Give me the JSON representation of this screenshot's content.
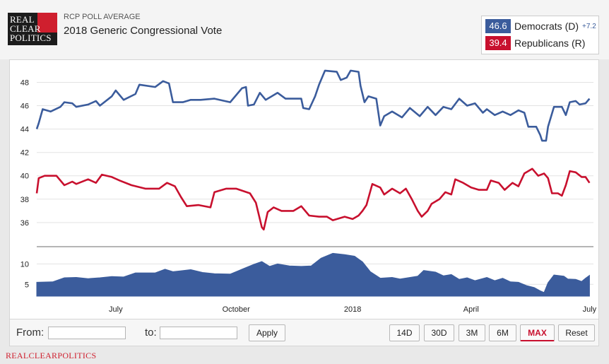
{
  "brand": {
    "logo_lines": [
      "REAL",
      "CLEAR",
      "POLITICS"
    ],
    "footer": "REALCLEARPOLITICS",
    "red": "#cf1f2e"
  },
  "header": {
    "label": "RCP POLL AVERAGE",
    "title": "2018 Generic Congressional Vote"
  },
  "legend": {
    "democrats": {
      "value": "46.6",
      "name": "Democrats (D)",
      "spread": "+7.2",
      "color": "#3b5c9c"
    },
    "republicans": {
      "value": "39.4",
      "name": "Republicans (R)",
      "color": "#c8102e"
    }
  },
  "controls": {
    "from_label": "From:",
    "to_label": "to:",
    "from_value": "",
    "to_value": "",
    "apply": "Apply",
    "ranges": [
      "14D",
      "30D",
      "3M",
      "6M",
      "MAX"
    ],
    "active_range": "MAX",
    "reset": "Reset"
  },
  "chart_data": {
    "type": "line",
    "title": "2018 Generic Congressional Vote",
    "x_unit": "month index (0 = May 2017)",
    "x_ticks": [
      {
        "x": 2.1,
        "label": "July"
      },
      {
        "x": 5.15,
        "label": "October"
      },
      {
        "x": 8.1,
        "label": "2018"
      },
      {
        "x": 11.1,
        "label": "April"
      },
      {
        "x": 14.1,
        "label": "July"
      }
    ],
    "xlim": [
      0.1,
      14.2
    ],
    "main": {
      "ylim": [
        34.3,
        49.6
      ],
      "y_ticks": [
        36,
        38,
        40,
        42,
        44,
        46,
        48
      ],
      "grid": true,
      "series": [
        {
          "name": "Democrats (D)",
          "color": "#3b5c9c",
          "points": [
            [
              0.1,
              44.0
            ],
            [
              0.15,
              44.5
            ],
            [
              0.25,
              45.7
            ],
            [
              0.45,
              45.5
            ],
            [
              0.7,
              45.9
            ],
            [
              0.8,
              46.3
            ],
            [
              1.0,
              46.2
            ],
            [
              1.1,
              45.9
            ],
            [
              1.4,
              46.1
            ],
            [
              1.6,
              46.4
            ],
            [
              1.7,
              46.0
            ],
            [
              2.0,
              46.8
            ],
            [
              2.1,
              47.3
            ],
            [
              2.3,
              46.5
            ],
            [
              2.6,
              47.0
            ],
            [
              2.7,
              47.8
            ],
            [
              3.1,
              47.6
            ],
            [
              3.3,
              48.1
            ],
            [
              3.45,
              47.9
            ],
            [
              3.55,
              46.3
            ],
            [
              3.8,
              46.3
            ],
            [
              4.0,
              46.5
            ],
            [
              4.25,
              46.5
            ],
            [
              4.6,
              46.6
            ],
            [
              5.0,
              46.3
            ],
            [
              5.3,
              47.5
            ],
            [
              5.4,
              47.6
            ],
            [
              5.45,
              46.0
            ],
            [
              5.6,
              46.1
            ],
            [
              5.75,
              47.1
            ],
            [
              5.9,
              46.5
            ],
            [
              6.2,
              47.1
            ],
            [
              6.4,
              46.6
            ],
            [
              6.8,
              46.6
            ],
            [
              6.85,
              45.8
            ],
            [
              7.0,
              45.7
            ],
            [
              7.15,
              46.8
            ],
            [
              7.25,
              47.8
            ],
            [
              7.4,
              49.0
            ],
            [
              7.7,
              48.9
            ],
            [
              7.8,
              48.2
            ],
            [
              7.95,
              48.4
            ],
            [
              8.05,
              49.0
            ],
            [
              8.25,
              48.9
            ],
            [
              8.3,
              47.7
            ],
            [
              8.4,
              46.3
            ],
            [
              8.5,
              46.8
            ],
            [
              8.7,
              46.6
            ],
            [
              8.8,
              44.3
            ],
            [
              8.9,
              45.1
            ],
            [
              9.1,
              45.5
            ],
            [
              9.35,
              45.0
            ],
            [
              9.55,
              45.8
            ],
            [
              9.8,
              45.1
            ],
            [
              10.0,
              45.9
            ],
            [
              10.2,
              45.2
            ],
            [
              10.4,
              45.9
            ],
            [
              10.6,
              45.7
            ],
            [
              10.8,
              46.6
            ],
            [
              11.0,
              46.0
            ],
            [
              11.2,
              46.2
            ],
            [
              11.4,
              45.4
            ],
            [
              11.5,
              45.7
            ],
            [
              11.7,
              45.2
            ],
            [
              11.9,
              45.5
            ],
            [
              12.1,
              45.2
            ],
            [
              12.3,
              45.6
            ],
            [
              12.45,
              45.4
            ],
            [
              12.55,
              44.2
            ],
            [
              12.75,
              44.2
            ],
            [
              12.85,
              43.5
            ],
            [
              12.9,
              43.0
            ],
            [
              13.0,
              43.0
            ],
            [
              13.05,
              44.2
            ],
            [
              13.2,
              45.9
            ],
            [
              13.4,
              45.9
            ],
            [
              13.5,
              45.2
            ],
            [
              13.6,
              46.3
            ],
            [
              13.75,
              46.4
            ],
            [
              13.85,
              46.1
            ],
            [
              14.0,
              46.2
            ],
            [
              14.1,
              46.6
            ]
          ]
        },
        {
          "name": "Republicans (R)",
          "color": "#c8102e",
          "points": [
            [
              0.1,
              38.5
            ],
            [
              0.15,
              39.8
            ],
            [
              0.3,
              40.0
            ],
            [
              0.6,
              40.0
            ],
            [
              0.8,
              39.2
            ],
            [
              1.0,
              39.5
            ],
            [
              1.1,
              39.3
            ],
            [
              1.4,
              39.7
            ],
            [
              1.6,
              39.4
            ],
            [
              1.75,
              40.1
            ],
            [
              2.0,
              39.9
            ],
            [
              2.2,
              39.6
            ],
            [
              2.5,
              39.2
            ],
            [
              2.85,
              38.9
            ],
            [
              3.2,
              38.9
            ],
            [
              3.4,
              39.4
            ],
            [
              3.6,
              39.1
            ],
            [
              3.75,
              38.2
            ],
            [
              3.9,
              37.4
            ],
            [
              4.2,
              37.5
            ],
            [
              4.5,
              37.3
            ],
            [
              4.6,
              38.6
            ],
            [
              4.9,
              38.9
            ],
            [
              5.15,
              38.9
            ],
            [
              5.5,
              38.5
            ],
            [
              5.65,
              37.7
            ],
            [
              5.8,
              35.6
            ],
            [
              5.85,
              35.4
            ],
            [
              5.95,
              36.9
            ],
            [
              6.1,
              37.3
            ],
            [
              6.3,
              37.0
            ],
            [
              6.6,
              37.0
            ],
            [
              6.8,
              37.4
            ],
            [
              7.0,
              36.6
            ],
            [
              7.25,
              36.5
            ],
            [
              7.45,
              36.5
            ],
            [
              7.6,
              36.2
            ],
            [
              7.9,
              36.5
            ],
            [
              8.1,
              36.3
            ],
            [
              8.25,
              36.6
            ],
            [
              8.35,
              37.0
            ],
            [
              8.45,
              37.5
            ],
            [
              8.6,
              39.3
            ],
            [
              8.8,
              39.0
            ],
            [
              8.9,
              38.4
            ],
            [
              9.1,
              38.9
            ],
            [
              9.3,
              38.5
            ],
            [
              9.45,
              38.9
            ],
            [
              9.6,
              38.0
            ],
            [
              9.75,
              37.0
            ],
            [
              9.85,
              36.5
            ],
            [
              10.0,
              37.0
            ],
            [
              10.1,
              37.6
            ],
            [
              10.3,
              38.0
            ],
            [
              10.45,
              38.6
            ],
            [
              10.6,
              38.4
            ],
            [
              10.7,
              39.7
            ],
            [
              10.9,
              39.4
            ],
            [
              11.1,
              39.0
            ],
            [
              11.3,
              38.8
            ],
            [
              11.5,
              38.8
            ],
            [
              11.6,
              39.6
            ],
            [
              11.8,
              39.4
            ],
            [
              11.95,
              38.8
            ],
            [
              12.15,
              39.4
            ],
            [
              12.3,
              39.1
            ],
            [
              12.45,
              40.2
            ],
            [
              12.65,
              40.6
            ],
            [
              12.8,
              40.0
            ],
            [
              12.95,
              40.2
            ],
            [
              13.05,
              39.8
            ],
            [
              13.15,
              38.5
            ],
            [
              13.3,
              38.5
            ],
            [
              13.4,
              38.3
            ],
            [
              13.5,
              39.2
            ],
            [
              13.6,
              40.4
            ],
            [
              13.75,
              40.3
            ],
            [
              13.9,
              39.9
            ],
            [
              14.0,
              39.9
            ],
            [
              14.1,
              39.4
            ]
          ]
        }
      ]
    },
    "spread": {
      "type": "area",
      "name": "Spread",
      "ylim": [
        2.1,
        12.5
      ],
      "y_ticks": [
        5,
        10
      ],
      "color": "#3b5c9c",
      "points": [
        [
          0.1,
          5.5
        ],
        [
          0.5,
          5.6
        ],
        [
          0.8,
          6.6
        ],
        [
          1.1,
          6.7
        ],
        [
          1.4,
          6.4
        ],
        [
          1.7,
          6.6
        ],
        [
          2.0,
          6.9
        ],
        [
          2.3,
          6.8
        ],
        [
          2.6,
          7.8
        ],
        [
          3.1,
          7.8
        ],
        [
          3.35,
          8.7
        ],
        [
          3.55,
          8.1
        ],
        [
          4.0,
          8.6
        ],
        [
          4.3,
          7.9
        ],
        [
          4.6,
          7.6
        ],
        [
          5.0,
          7.5
        ],
        [
          5.3,
          8.7
        ],
        [
          5.6,
          9.9
        ],
        [
          5.8,
          10.6
        ],
        [
          6.0,
          9.4
        ],
        [
          6.2,
          10.0
        ],
        [
          6.5,
          9.5
        ],
        [
          6.8,
          9.4
        ],
        [
          7.05,
          9.5
        ],
        [
          7.3,
          11.4
        ],
        [
          7.6,
          12.6
        ],
        [
          7.9,
          12.3
        ],
        [
          8.15,
          11.9
        ],
        [
          8.35,
          10.5
        ],
        [
          8.55,
          8.1
        ],
        [
          8.8,
          6.5
        ],
        [
          9.1,
          6.7
        ],
        [
          9.3,
          6.3
        ],
        [
          9.5,
          6.6
        ],
        [
          9.75,
          7.0
        ],
        [
          9.9,
          8.4
        ],
        [
          10.2,
          8.0
        ],
        [
          10.4,
          7.1
        ],
        [
          10.6,
          7.4
        ],
        [
          10.8,
          6.2
        ],
        [
          11.0,
          6.6
        ],
        [
          11.2,
          5.9
        ],
        [
          11.5,
          6.7
        ],
        [
          11.7,
          5.9
        ],
        [
          11.9,
          6.5
        ],
        [
          12.1,
          5.6
        ],
        [
          12.3,
          5.5
        ],
        [
          12.5,
          4.7
        ],
        [
          12.7,
          4.2
        ],
        [
          12.85,
          3.4
        ],
        [
          12.95,
          3.0
        ],
        [
          13.05,
          5.4
        ],
        [
          13.2,
          7.3
        ],
        [
          13.45,
          7.0
        ],
        [
          13.55,
          6.3
        ],
        [
          13.75,
          6.2
        ],
        [
          13.9,
          5.7
        ],
        [
          14.0,
          6.5
        ],
        [
          14.1,
          7.2
        ]
      ]
    }
  }
}
